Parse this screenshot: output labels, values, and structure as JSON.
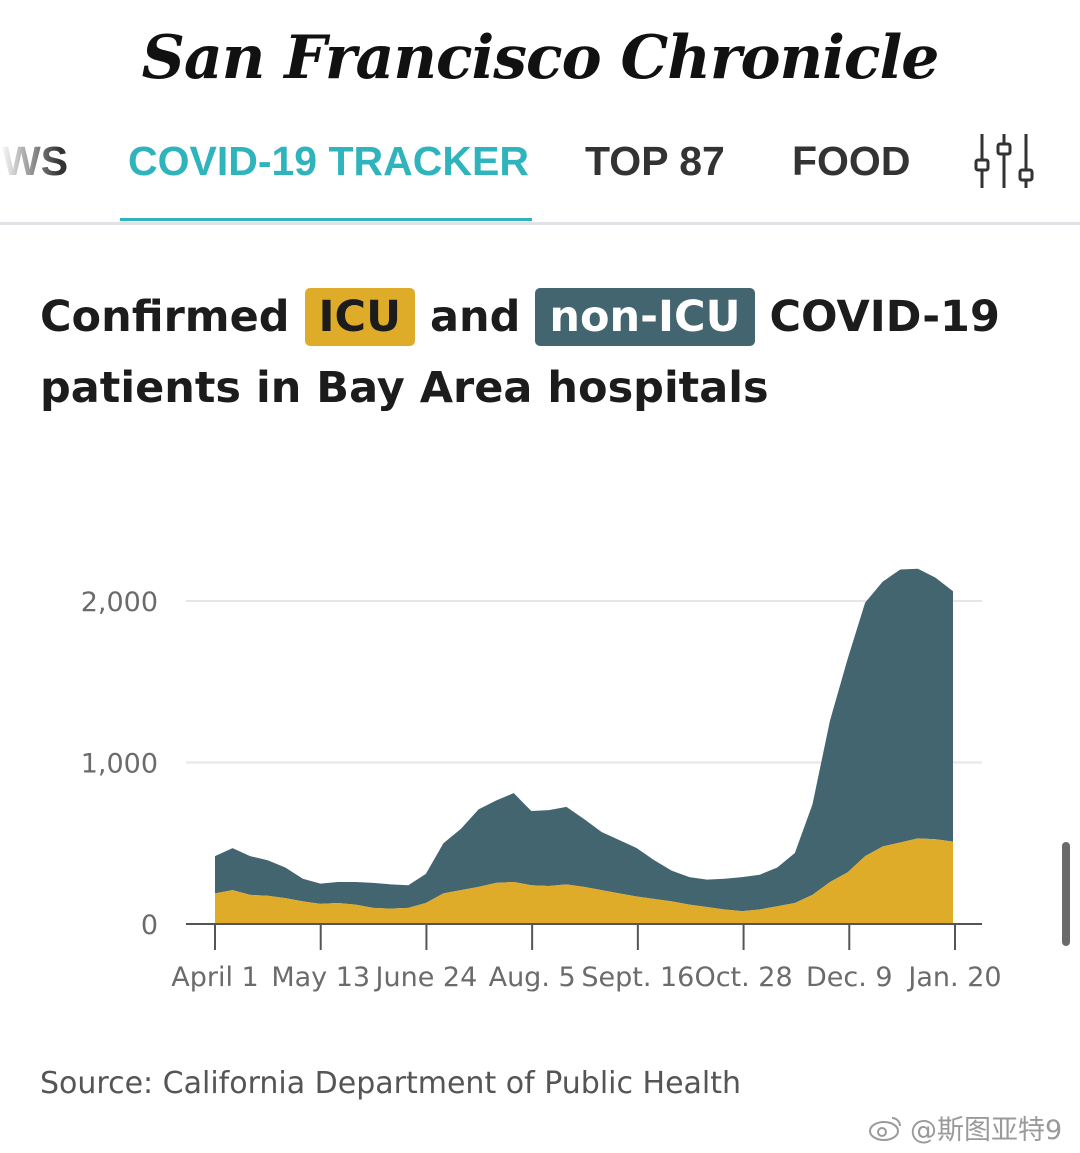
{
  "masthead": {
    "title": "San Francisco Chronicle"
  },
  "nav": {
    "items": [
      {
        "label": "WS",
        "active": false
      },
      {
        "label": "COVID-19 TRACKER",
        "active": true
      },
      {
        "label": "TOP 87",
        "active": false
      },
      {
        "label": "FOOD",
        "active": false
      }
    ],
    "filter_icon": "sliders-icon"
  },
  "headline": {
    "part1": "Confirmed",
    "icu": "ICU",
    "part2": "and",
    "non_icu": "non-ICU",
    "part3": "COVID-19 patients in Bay Area hospitals"
  },
  "colors": {
    "icu": "#dfac2a",
    "non_icu": "#43656f",
    "accent": "#2fb3bd"
  },
  "chart_data": {
    "type": "area",
    "stacked": true,
    "y_ticks": [
      "0",
      "1,000",
      "2,000"
    ],
    "y_tick_values": [
      0,
      1000,
      2000
    ],
    "ylim": [
      0,
      2200
    ],
    "x_tick_labels": [
      "April 1",
      "May 13",
      "June 24",
      "Aug. 5",
      "Sept. 16",
      "Oct. 28",
      "Dec. 9",
      "Jan. 20"
    ],
    "x_labels": [
      "2020-04-01",
      "2020-04-08",
      "2020-04-15",
      "2020-04-22",
      "2020-04-29",
      "2020-05-06",
      "2020-05-13",
      "2020-05-20",
      "2020-05-27",
      "2020-06-03",
      "2020-06-10",
      "2020-06-17",
      "2020-06-24",
      "2020-07-01",
      "2020-07-08",
      "2020-07-15",
      "2020-07-22",
      "2020-07-29",
      "2020-08-05",
      "2020-08-12",
      "2020-08-19",
      "2020-08-26",
      "2020-09-02",
      "2020-09-09",
      "2020-09-16",
      "2020-09-23",
      "2020-09-30",
      "2020-10-07",
      "2020-10-14",
      "2020-10-21",
      "2020-10-28",
      "2020-11-04",
      "2020-11-11",
      "2020-11-18",
      "2020-11-25",
      "2020-12-02",
      "2020-12-09",
      "2020-12-16",
      "2020-12-23",
      "2020-12-30",
      "2021-01-06",
      "2021-01-13",
      "2021-01-20"
    ],
    "series": [
      {
        "name": "ICU",
        "color": "#dfac2a",
        "values": [
          190,
          210,
          180,
          175,
          160,
          140,
          125,
          130,
          120,
          100,
          95,
          100,
          130,
          190,
          210,
          230,
          255,
          260,
          240,
          235,
          245,
          230,
          210,
          190,
          170,
          155,
          140,
          120,
          105,
          90,
          80,
          90,
          110,
          130,
          180,
          260,
          320,
          420,
          480,
          505,
          530,
          525,
          510
        ]
      },
      {
        "name": "non-ICU",
        "color": "#43656f",
        "values": [
          230,
          260,
          240,
          220,
          190,
          140,
          125,
          130,
          140,
          155,
          150,
          140,
          180,
          310,
          380,
          480,
          510,
          550,
          460,
          470,
          480,
          420,
          360,
          330,
          300,
          240,
          190,
          170,
          170,
          190,
          210,
          215,
          240,
          310,
          560,
          1000,
          1320,
          1570,
          1640,
          1690,
          1670,
          1620,
          1550
        ]
      }
    ],
    "source": "Source: California Department of Public Health"
  },
  "watermark": "@斯图亚特9"
}
